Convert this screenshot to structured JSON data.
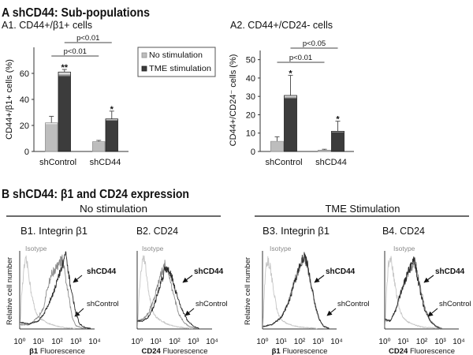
{
  "section_a": {
    "title": "A  shCD44: Sub-populations"
  },
  "section_b": {
    "title": "B  shCD44: β1 and CD24 expression",
    "groups": [
      {
        "label": "No stimulation"
      },
      {
        "label": "TME Stimulation"
      }
    ]
  },
  "chart_data": [
    {
      "id": "A1",
      "type": "bar",
      "title": "A1. CD44+/β1+ cells",
      "xlabel": "",
      "ylabel": "CD44+/β1+ cells (%)",
      "categories": [
        "shControl",
        "shCD44"
      ],
      "ylim": [
        0,
        80
      ],
      "yticks": [
        0,
        20,
        40,
        60
      ],
      "grid": false,
      "legend": "top-right",
      "series": [
        {
          "name": "No stimulation",
          "color": "#bdbdbd",
          "stroke": "#8f8f8f",
          "values": [
            22,
            7.5
          ],
          "errors": [
            5,
            1
          ]
        },
        {
          "name": "TME stimulation",
          "color": "#3c3c3c",
          "stroke": "#1e1e1e",
          "values": [
            61,
            25
          ],
          "errors": [
            2,
            6
          ]
        }
      ],
      "annotations": [
        {
          "category": 0,
          "series": 1,
          "text": "**"
        },
        {
          "category": 1,
          "series": 1,
          "text": "*"
        }
      ],
      "comparisons": [
        {
          "from": {
            "category": 0,
            "series": 0
          },
          "to": {
            "category": 1,
            "series": 0
          },
          "label": "p<0.01"
        },
        {
          "from": {
            "category": 0,
            "series": 1
          },
          "to": {
            "category": 1,
            "series": 1
          },
          "label": "p<0.01"
        }
      ]
    },
    {
      "id": "A2",
      "type": "bar",
      "title": "A2. CD44+/CD24- cells",
      "xlabel": "",
      "ylabel": "CD44+/CD24⁻ cells (%)",
      "categories": [
        "shControl",
        "shCD44"
      ],
      "ylim": [
        0,
        55
      ],
      "yticks": [
        0,
        10,
        20,
        30,
        40,
        50
      ],
      "grid": false,
      "series": [
        {
          "name": "No stimulation",
          "color": "#bdbdbd",
          "stroke": "#8f8f8f",
          "values": [
            5.5,
            0.7
          ],
          "errors": [
            2.5,
            0.5
          ]
        },
        {
          "name": "TME stimulation",
          "color": "#3c3c3c",
          "stroke": "#1e1e1e",
          "values": [
            30.5,
            11
          ],
          "errors": [
            11,
            5.5
          ]
        }
      ],
      "annotations": [
        {
          "category": 0,
          "series": 1,
          "text": "*"
        },
        {
          "category": 1,
          "series": 1,
          "text": "*"
        }
      ],
      "comparisons": [
        {
          "from": {
            "category": 0,
            "series": 0
          },
          "to": {
            "category": 1,
            "series": 0
          },
          "label": "p<0.01"
        },
        {
          "from": {
            "category": 0,
            "series": 1
          },
          "to": {
            "category": 1,
            "series": 1
          },
          "label": "p<0.05"
        }
      ]
    },
    {
      "id": "B1",
      "type": "line",
      "title": "B1. Integrin β1",
      "condition": "No stimulation",
      "xscale": "log",
      "xlim": [
        1,
        10000
      ],
      "xticks": [
        "10⁰",
        "10¹",
        "10²",
        "10³",
        "10⁴"
      ],
      "xlabel": {
        "marker": "β1",
        "suffix": " Fluorescence"
      },
      "ylabel": "Relative cell number",
      "series": [
        {
          "name": "Isotype",
          "label": "Isotype",
          "color": "#c6c6c6",
          "points": [
            [
              0.02,
              0.02
            ],
            [
              0.1,
              0.45
            ],
            [
              0.25,
              0.82
            ],
            [
              0.35,
              0.9
            ],
            [
              0.45,
              0.78
            ],
            [
              0.6,
              0.5
            ],
            [
              0.8,
              0.26
            ],
            [
              1.0,
              0.15
            ],
            [
              1.3,
              0.1
            ],
            [
              1.6,
              0.06
            ],
            [
              2.0,
              0.03
            ],
            [
              2.5,
              0.01
            ],
            [
              3.0,
              0
            ]
          ]
        },
        {
          "name": "shControl",
          "label": "shControl",
          "color": "#8a8a8a",
          "points": [
            [
              0.02,
              0.05
            ],
            [
              0.5,
              0.05
            ],
            [
              1.0,
              0.15
            ],
            [
              1.3,
              0.3
            ],
            [
              1.5,
              0.55
            ],
            [
              1.7,
              0.72
            ],
            [
              1.9,
              0.78
            ],
            [
              2.1,
              0.84
            ],
            [
              2.25,
              0.93
            ],
            [
              2.4,
              0.74
            ],
            [
              2.6,
              0.45
            ],
            [
              2.8,
              0.15
            ],
            [
              3.0,
              0.04
            ],
            [
              3.3,
              0.01
            ],
            [
              3.6,
              0
            ]
          ]
        },
        {
          "name": "shCD44",
          "label": "shCD44",
          "color": "#2a2a2a",
          "points": [
            [
              0.02,
              0.08
            ],
            [
              0.5,
              0.06
            ],
            [
              1.0,
              0.1
            ],
            [
              1.3,
              0.2
            ],
            [
              1.6,
              0.35
            ],
            [
              1.9,
              0.55
            ],
            [
              2.1,
              0.7
            ],
            [
              2.3,
              0.85
            ],
            [
              2.45,
              1.0
            ],
            [
              2.6,
              0.72
            ],
            [
              2.8,
              0.45
            ],
            [
              3.0,
              0.2
            ],
            [
              3.2,
              0.06
            ],
            [
              3.5,
              0.01
            ],
            [
              3.8,
              0
            ]
          ]
        }
      ]
    },
    {
      "id": "B2",
      "type": "line",
      "title": "B2. CD24",
      "condition": "No stimulation",
      "xscale": "log",
      "xlim": [
        1,
        10000
      ],
      "xticks": [
        "10⁰",
        "10¹",
        "10²",
        "10³",
        "10⁴"
      ],
      "xlabel": {
        "marker": "CD24",
        "suffix": " Fluorescence"
      },
      "ylabel": "",
      "series": [
        {
          "name": "Isotype",
          "label": "Isotype",
          "color": "#c6c6c6",
          "points": [
            [
              0.02,
              0.02
            ],
            [
              0.1,
              0.45
            ],
            [
              0.25,
              0.85
            ],
            [
              0.35,
              0.93
            ],
            [
              0.45,
              0.8
            ],
            [
              0.6,
              0.5
            ],
            [
              0.8,
              0.25
            ],
            [
              1.0,
              0.15
            ],
            [
              1.3,
              0.1
            ],
            [
              1.6,
              0.06
            ],
            [
              2.0,
              0.03
            ],
            [
              2.5,
              0.01
            ],
            [
              3.0,
              0
            ]
          ]
        },
        {
          "name": "shControl",
          "label": "shControl",
          "color": "#8a8a8a",
          "points": [
            [
              0.02,
              0.1
            ],
            [
              0.3,
              0.12
            ],
            [
              0.6,
              0.2
            ],
            [
              0.9,
              0.4
            ],
            [
              1.2,
              0.65
            ],
            [
              1.45,
              0.85
            ],
            [
              1.6,
              0.8
            ],
            [
              1.8,
              0.6
            ],
            [
              2.0,
              0.4
            ],
            [
              2.2,
              0.2
            ],
            [
              2.5,
              0.08
            ],
            [
              2.8,
              0.02
            ],
            [
              3.2,
              0
            ]
          ]
        },
        {
          "name": "shCD44",
          "label": "shCD44",
          "color": "#2a2a2a",
          "points": [
            [
              0.02,
              0.1
            ],
            [
              0.3,
              0.1
            ],
            [
              0.6,
              0.15
            ],
            [
              0.9,
              0.3
            ],
            [
              1.2,
              0.55
            ],
            [
              1.5,
              0.8
            ],
            [
              1.7,
              0.78
            ],
            [
              1.9,
              0.65
            ],
            [
              2.1,
              0.45
            ],
            [
              2.4,
              0.25
            ],
            [
              2.7,
              0.1
            ],
            [
              3.0,
              0.03
            ],
            [
              3.3,
              0
            ]
          ]
        }
      ]
    },
    {
      "id": "B3",
      "type": "line",
      "title": "B3. Integrin β1",
      "condition": "TME Stimulation",
      "xscale": "log",
      "xlim": [
        1,
        10000
      ],
      "xticks": [
        "10⁰",
        "10¹",
        "10²",
        "10³",
        "10⁴"
      ],
      "xlabel": {
        "marker": "β1",
        "suffix": " Fluorescence"
      },
      "ylabel": "Relative cell number",
      "series": [
        {
          "name": "Isotype",
          "label": "Isotype",
          "color": "#c6c6c6",
          "points": [
            [
              0.02,
              0.02
            ],
            [
              0.1,
              0.5
            ],
            [
              0.2,
              0.85
            ],
            [
              0.3,
              0.9
            ],
            [
              0.42,
              0.8
            ],
            [
              0.6,
              0.5
            ],
            [
              0.8,
              0.22
            ],
            [
              1.0,
              0.12
            ],
            [
              1.3,
              0.07
            ],
            [
              1.6,
              0.04
            ],
            [
              2.0,
              0.02
            ],
            [
              2.5,
              0.01
            ],
            [
              3.0,
              0
            ]
          ]
        },
        {
          "name": "shControl",
          "label": "shControl",
          "color": "#8a8a8a",
          "points": [
            [
              0.02,
              0.02
            ],
            [
              0.5,
              0.05
            ],
            [
              1.0,
              0.15
            ],
            [
              1.4,
              0.35
            ],
            [
              1.7,
              0.6
            ],
            [
              2.0,
              0.8
            ],
            [
              2.2,
              0.95
            ],
            [
              2.4,
              0.85
            ],
            [
              2.6,
              0.6
            ],
            [
              2.8,
              0.35
            ],
            [
              3.0,
              0.15
            ],
            [
              3.3,
              0.03
            ],
            [
              3.6,
              0
            ]
          ]
        },
        {
          "name": "shCD44",
          "label": "shCD44",
          "color": "#2a2a2a",
          "points": [
            [
              0.02,
              0.03
            ],
            [
              0.5,
              0.05
            ],
            [
              1.0,
              0.14
            ],
            [
              1.4,
              0.33
            ],
            [
              1.7,
              0.58
            ],
            [
              2.0,
              0.82
            ],
            [
              2.25,
              0.97
            ],
            [
              2.45,
              0.82
            ],
            [
              2.65,
              0.55
            ],
            [
              2.85,
              0.3
            ],
            [
              3.05,
              0.13
            ],
            [
              3.3,
              0.03
            ],
            [
              3.6,
              0
            ]
          ]
        }
      ]
    },
    {
      "id": "B4",
      "type": "line",
      "title": "B4. CD24",
      "condition": "TME Stimulation",
      "xscale": "log",
      "xlim": [
        1,
        10000
      ],
      "xticks": [
        "10⁰",
        "10¹",
        "10²",
        "10³",
        "10⁴"
      ],
      "xlabel": {
        "marker": "CD24",
        "suffix": " Fluorescence"
      },
      "ylabel": "",
      "series": [
        {
          "name": "Isotype",
          "label": "Isotype",
          "color": "#c6c6c6",
          "points": [
            [
              0.02,
              0.02
            ],
            [
              0.1,
              0.5
            ],
            [
              0.2,
              0.85
            ],
            [
              0.3,
              0.93
            ],
            [
              0.42,
              0.8
            ],
            [
              0.6,
              0.5
            ],
            [
              0.8,
              0.25
            ],
            [
              1.0,
              0.14
            ],
            [
              1.3,
              0.08
            ],
            [
              1.6,
              0.05
            ],
            [
              2.0,
              0.02
            ],
            [
              2.5,
              0.01
            ],
            [
              3.0,
              0
            ]
          ]
        },
        {
          "name": "shControl",
          "label": "shControl",
          "color": "#8a8a8a",
          "points": [
            [
              0.02,
              0.1
            ],
            [
              0.3,
              0.1
            ],
            [
              0.6,
              0.25
            ],
            [
              0.9,
              0.5
            ],
            [
              1.2,
              0.7
            ],
            [
              1.5,
              0.85
            ],
            [
              1.65,
              0.9
            ],
            [
              1.8,
              0.7
            ],
            [
              2.0,
              0.45
            ],
            [
              2.2,
              0.25
            ],
            [
              2.5,
              0.1
            ],
            [
              2.8,
              0.03
            ],
            [
              3.1,
              0
            ]
          ]
        },
        {
          "name": "shCD44",
          "label": "shCD44",
          "color": "#2a2a2a",
          "points": [
            [
              0.02,
              0.12
            ],
            [
              0.3,
              0.1
            ],
            [
              0.6,
              0.25
            ],
            [
              0.9,
              0.5
            ],
            [
              1.2,
              0.7
            ],
            [
              1.45,
              0.85
            ],
            [
              1.6,
              0.92
            ],
            [
              1.75,
              0.7
            ],
            [
              1.95,
              0.45
            ],
            [
              2.15,
              0.25
            ],
            [
              2.45,
              0.1
            ],
            [
              2.75,
              0.03
            ],
            [
              3.0,
              0
            ]
          ]
        }
      ]
    }
  ]
}
